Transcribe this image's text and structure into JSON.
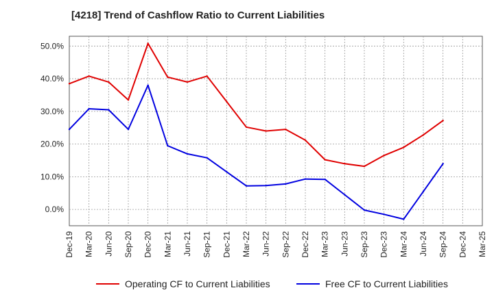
{
  "chart_data": {
    "type": "line",
    "title": "[4218]  Trend of Cashflow Ratio to Current Liabilities",
    "x": [
      "Dec-19",
      "Mar-20",
      "Jun-20",
      "Sep-20",
      "Dec-20",
      "Mar-21",
      "Jun-21",
      "Sep-21",
      "Dec-21",
      "Mar-22",
      "Jun-22",
      "Sep-22",
      "Dec-22",
      "Mar-23",
      "Jun-23",
      "Sep-23",
      "Dec-23",
      "Mar-24",
      "Jun-24",
      "Sep-24",
      "Dec-24",
      "Mar-25"
    ],
    "y_ticks": [
      0,
      10,
      20,
      30,
      40,
      50
    ],
    "y_tick_labels": [
      "0.0%",
      "10.0%",
      "20.0%",
      "30.0%",
      "40.0%",
      "50.0%"
    ],
    "ylim": [
      -5,
      53
    ],
    "grid": true,
    "legend_position": "bottom",
    "series": [
      {
        "name": "Operating CF to Current Liabilities",
        "color": "#e00000",
        "values": [
          38.5,
          40.8,
          39.0,
          33.5,
          50.8,
          40.5,
          39.0,
          40.8,
          33.0,
          25.2,
          24.0,
          24.5,
          21.2,
          15.2,
          14.0,
          13.2,
          16.5,
          19.0,
          22.8,
          27.2,
          null,
          null
        ]
      },
      {
        "name": "Free CF to Current Liabilities",
        "color": "#0000e0",
        "values": [
          24.5,
          30.8,
          30.5,
          24.5,
          38.0,
          19.5,
          17.0,
          15.8,
          11.5,
          7.2,
          7.3,
          7.8,
          9.3,
          9.2,
          4.5,
          -0.2,
          -1.5,
          -3.0,
          5.5,
          14.0,
          null,
          null
        ]
      }
    ]
  }
}
